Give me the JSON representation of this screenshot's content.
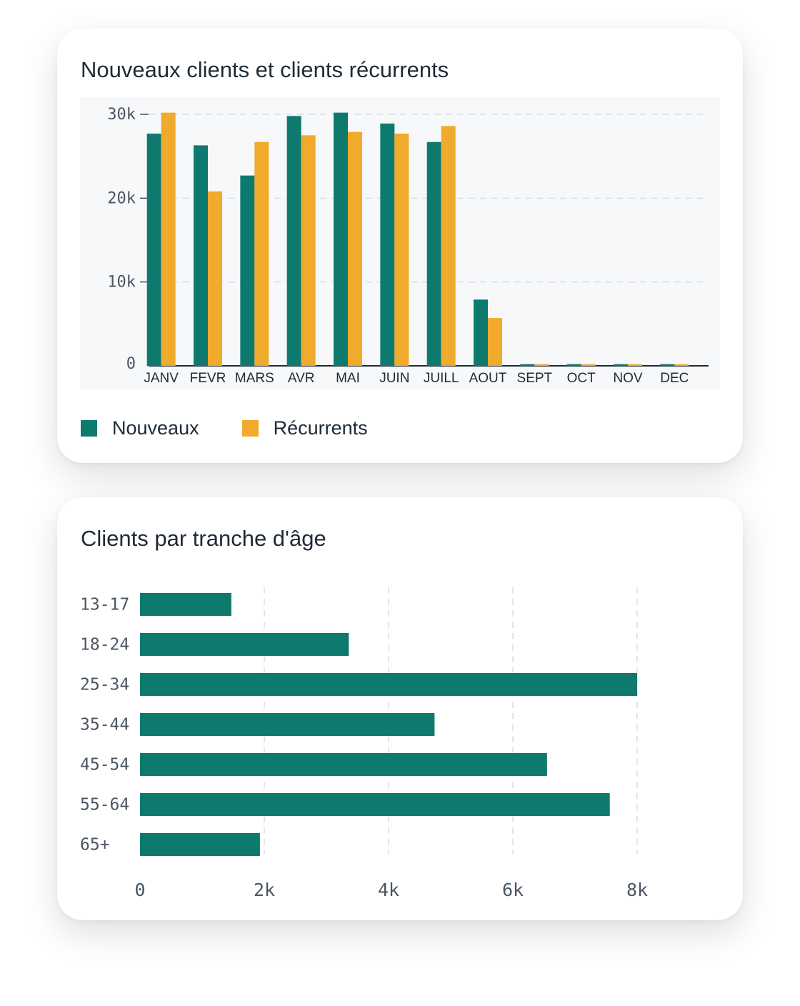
{
  "colors": {
    "nouveaux": "#0e7a6e",
    "recurrents": "#f0aa2c",
    "grid": "#d8dde3",
    "plot_bg": "#f7f8fa",
    "axis": "#1f2a37",
    "tick_text": "#4b5563"
  },
  "card1": {
    "title": "Nouveaux clients et clients récurrents",
    "legend": [
      {
        "label": "Nouveaux",
        "color_key": "nouveaux"
      },
      {
        "label": "Récurrents",
        "color_key": "recurrents"
      }
    ]
  },
  "card2": {
    "title": "Clients par tranche d'âge"
  },
  "chart_data": [
    {
      "type": "bar",
      "title": "Nouveaux clients et clients récurrents",
      "categories": [
        "JANV",
        "FEVR",
        "MARS",
        "AVR",
        "MAI",
        "JUIN",
        "JUILL",
        "AOUT",
        "SEPT",
        "OCT",
        "NOV",
        "DEC"
      ],
      "series": [
        {
          "name": "Nouveaux",
          "values": [
            27700,
            26300,
            22700,
            29800,
            30200,
            28900,
            26700,
            7900,
            200,
            200,
            200,
            200
          ]
        },
        {
          "name": "Récurrents",
          "values": [
            30200,
            20800,
            26700,
            27500,
            27900,
            27700,
            28600,
            5700,
            200,
            200,
            200,
            200
          ]
        }
      ],
      "ylim": [
        0,
        30000
      ],
      "yticks": [
        0,
        10000,
        20000,
        30000
      ],
      "ytick_labels": [
        "0",
        "10k",
        "20k",
        "30k"
      ],
      "grid": true,
      "legend_position": "bottom-left"
    },
    {
      "type": "bar",
      "orientation": "horizontal",
      "title": "Clients par tranche d'âge",
      "categories": [
        "13-17",
        "18-24",
        "25-34",
        "35-44",
        "45-54",
        "55-64",
        "65+"
      ],
      "values": [
        1470,
        3360,
        8000,
        4740,
        6550,
        7560,
        1930
      ],
      "xlim": [
        0,
        8000
      ],
      "xticks": [
        0,
        2000,
        4000,
        6000,
        8000
      ],
      "xtick_labels": [
        "0",
        "2k",
        "4k",
        "6k",
        "8k"
      ],
      "grid": true
    }
  ]
}
